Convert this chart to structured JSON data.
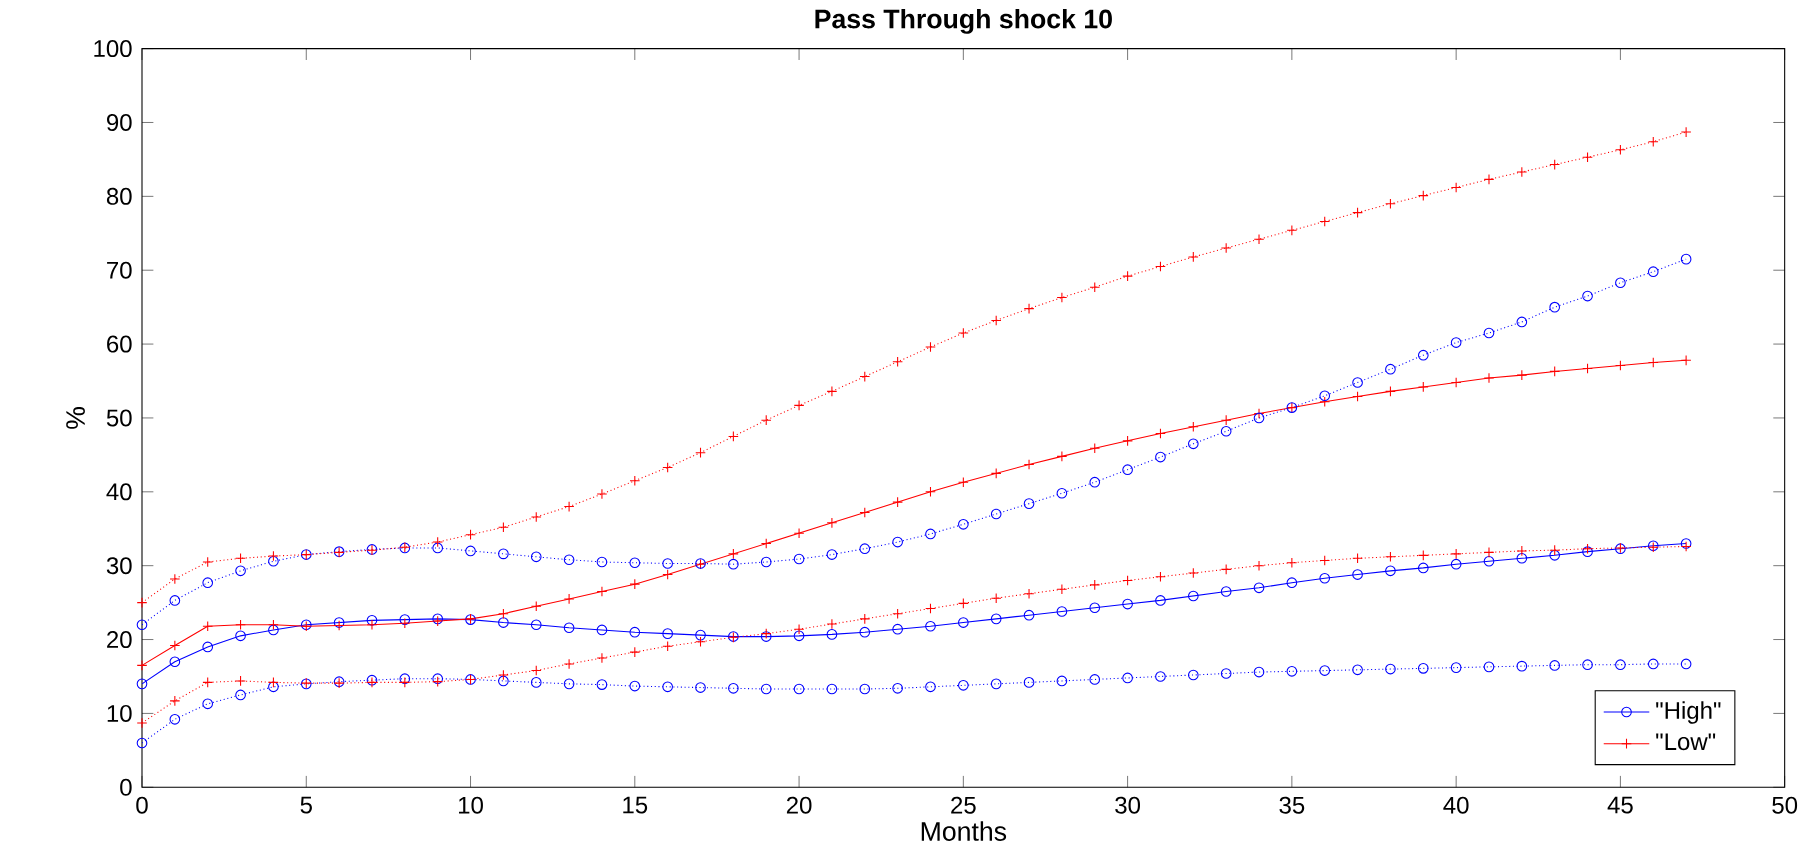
{
  "chart_data": {
    "type": "line",
    "title": "Pass Through shock 10",
    "xlabel": "Months",
    "ylabel": "%",
    "x": [
      0,
      1,
      2,
      3,
      4,
      5,
      6,
      7,
      8,
      9,
      10,
      11,
      12,
      13,
      14,
      15,
      16,
      17,
      18,
      19,
      20,
      21,
      22,
      23,
      24,
      25,
      26,
      27,
      28,
      29,
      30,
      31,
      32,
      33,
      34,
      35,
      36,
      37,
      38,
      39,
      40,
      41,
      42,
      43,
      44,
      45,
      46,
      47
    ],
    "xlim": [
      0,
      50
    ],
    "ylim": [
      0,
      100
    ],
    "xticks": [
      0,
      5,
      10,
      15,
      20,
      25,
      30,
      35,
      40,
      45,
      50
    ],
    "yticks": [
      0,
      10,
      20,
      30,
      40,
      50,
      60,
      70,
      80,
      90,
      100
    ],
    "legend": "bottom right",
    "series": [
      {
        "name": "\"High\"",
        "color": "#0000ff",
        "marker": "circle",
        "line_style": "solid",
        "values": [
          14,
          17,
          19,
          20.5,
          21.3,
          22,
          22.3,
          22.6,
          22.7,
          22.8,
          22.7,
          22.3,
          22,
          21.6,
          21.3,
          21,
          20.8,
          20.6,
          20.4,
          20.4,
          20.5,
          20.7,
          21,
          21.4,
          21.8,
          22.3,
          22.8,
          23.3,
          23.8,
          24.3,
          24.8,
          25.3,
          25.9,
          26.5,
          27,
          27.7,
          28.3,
          28.8,
          29.3,
          29.7,
          30.2,
          30.6,
          31,
          31.4,
          31.9,
          32.3,
          32.7,
          33
        ]
      },
      {
        "name": "\"Low\"",
        "color": "#ff0000",
        "marker": "cross",
        "line_style": "solid",
        "values": [
          16.5,
          19.2,
          21.8,
          22,
          22,
          21.8,
          21.9,
          22,
          22.2,
          22.5,
          22.8,
          23.5,
          24.5,
          25.5,
          26.5,
          27.5,
          28.8,
          30.2,
          31.6,
          33,
          34.4,
          35.8,
          37.2,
          38.6,
          40,
          41.3,
          42.5,
          43.7,
          44.8,
          45.9,
          46.9,
          47.9,
          48.8,
          49.7,
          50.6,
          51.4,
          52.2,
          52.9,
          53.6,
          54.2,
          54.8,
          55.4,
          55.8,
          56.3,
          56.7,
          57.1,
          57.5,
          57.8
        ]
      },
      {
        "color": "#0000ff",
        "marker": "circle",
        "line_style": "dotted",
        "values": [
          22,
          25.3,
          27.7,
          29.3,
          30.6,
          31.5,
          31.9,
          32.2,
          32.4,
          32.4,
          32,
          31.6,
          31.2,
          30.8,
          30.5,
          30.4,
          30.3,
          30.3,
          30.2,
          30.5,
          30.9,
          31.5,
          32.3,
          33.2,
          34.3,
          35.6,
          37,
          38.4,
          39.8,
          41.3,
          43,
          44.7,
          46.5,
          48.2,
          50,
          51.4,
          53,
          54.8,
          56.6,
          58.5,
          60.2,
          61.5,
          63,
          65,
          66.5,
          68.3,
          69.8,
          71.5
        ]
      },
      {
        "color": "#0000ff",
        "marker": "circle",
        "line_style": "dotted",
        "values": [
          6,
          9.2,
          11.3,
          12.5,
          13.6,
          14,
          14.3,
          14.5,
          14.7,
          14.7,
          14.6,
          14.4,
          14.2,
          14,
          13.9,
          13.7,
          13.6,
          13.5,
          13.4,
          13.3,
          13.3,
          13.3,
          13.3,
          13.4,
          13.6,
          13.8,
          14,
          14.2,
          14.4,
          14.6,
          14.8,
          15,
          15.2,
          15.4,
          15.6,
          15.7,
          15.8,
          15.9,
          16,
          16.1,
          16.2,
          16.3,
          16.4,
          16.5,
          16.6,
          16.6,
          16.7,
          16.7
        ]
      },
      {
        "color": "#ff0000",
        "marker": "cross",
        "line_style": "dotted",
        "values": [
          25,
          28.2,
          30.5,
          31,
          31.3,
          31.5,
          31.8,
          32.1,
          32.5,
          33.2,
          34.2,
          35.2,
          36.6,
          38,
          39.7,
          41.5,
          43.3,
          45.3,
          47.5,
          49.7,
          51.7,
          53.6,
          55.6,
          57.6,
          59.6,
          61.5,
          63.2,
          64.8,
          66.3,
          67.7,
          69.2,
          70.5,
          71.8,
          73,
          74.2,
          75.4,
          76.6,
          77.8,
          79,
          80.1,
          81.2,
          82.3,
          83.3,
          84.3,
          85.3,
          86.3,
          87.4,
          88.7
        ]
      },
      {
        "color": "#ff0000",
        "marker": "cross",
        "line_style": "dotted",
        "values": [
          8.7,
          11.7,
          14.2,
          14.4,
          14.2,
          14.1,
          14.1,
          14.2,
          14.2,
          14.3,
          14.6,
          15.2,
          15.8,
          16.7,
          17.5,
          18.3,
          19.1,
          19.7,
          20.3,
          20.8,
          21.4,
          22.1,
          22.8,
          23.5,
          24.2,
          24.9,
          25.6,
          26.2,
          26.8,
          27.4,
          28,
          28.5,
          29,
          29.5,
          30,
          30.4,
          30.7,
          31,
          31.2,
          31.4,
          31.6,
          31.8,
          32,
          32.1,
          32.3,
          32.4,
          32.5,
          32.6
        ]
      }
    ]
  }
}
